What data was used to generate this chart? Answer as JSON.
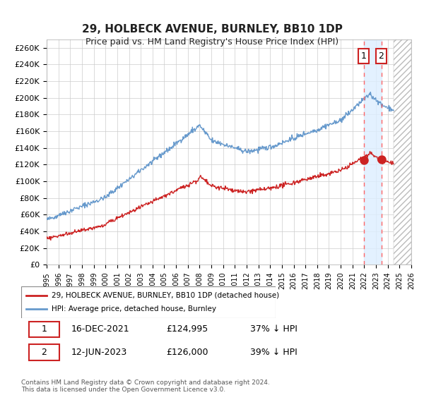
{
  "title": "29, HOLBECK AVENUE, BURNLEY, BB10 1DP",
  "subtitle": "Price paid vs. HM Land Registry's House Price Index (HPI)",
  "ylabel": "",
  "ylim": [
    0,
    270000
  ],
  "yticks": [
    0,
    20000,
    40000,
    60000,
    80000,
    100000,
    120000,
    140000,
    160000,
    180000,
    200000,
    220000,
    240000,
    260000
  ],
  "xmin": 1995,
  "xmax": 2026,
  "xticks": [
    1995,
    1996,
    1997,
    1998,
    1999,
    2000,
    2001,
    2002,
    2003,
    2004,
    2005,
    2006,
    2007,
    2008,
    2009,
    2010,
    2011,
    2012,
    2013,
    2014,
    2015,
    2016,
    2017,
    2018,
    2019,
    2020,
    2021,
    2022,
    2023,
    2024,
    2025,
    2026
  ],
  "hpi_color": "#6699cc",
  "price_color": "#cc2222",
  "dot_color": "#cc2222",
  "transaction1_x": 2021.96,
  "transaction1_y": 124995,
  "transaction2_x": 2023.45,
  "transaction2_y": 126000,
  "transaction1_label": "1",
  "transaction2_label": "2",
  "vline1_x": 2021.96,
  "vline2_x": 2023.45,
  "shade_start": 2021.96,
  "shade_end": 2023.45,
  "shade_color": "#ddeeff",
  "future_hatch_start": 2024.5,
  "legend_entries": [
    "29, HOLBECK AVENUE, BURNLEY, BB10 1DP (detached house)",
    "HPI: Average price, detached house, Burnley"
  ],
  "table_data": [
    [
      "1",
      "16-DEC-2021",
      "£124,995",
      "37% ↓ HPI"
    ],
    [
      "2",
      "12-JUN-2023",
      "£126,000",
      "39% ↓ HPI"
    ]
  ],
  "footer": "Contains HM Land Registry data © Crown copyright and database right 2024.\nThis data is licensed under the Open Government Licence v3.0.",
  "background_color": "#ffffff",
  "grid_color": "#cccccc",
  "title_color": "#222222"
}
